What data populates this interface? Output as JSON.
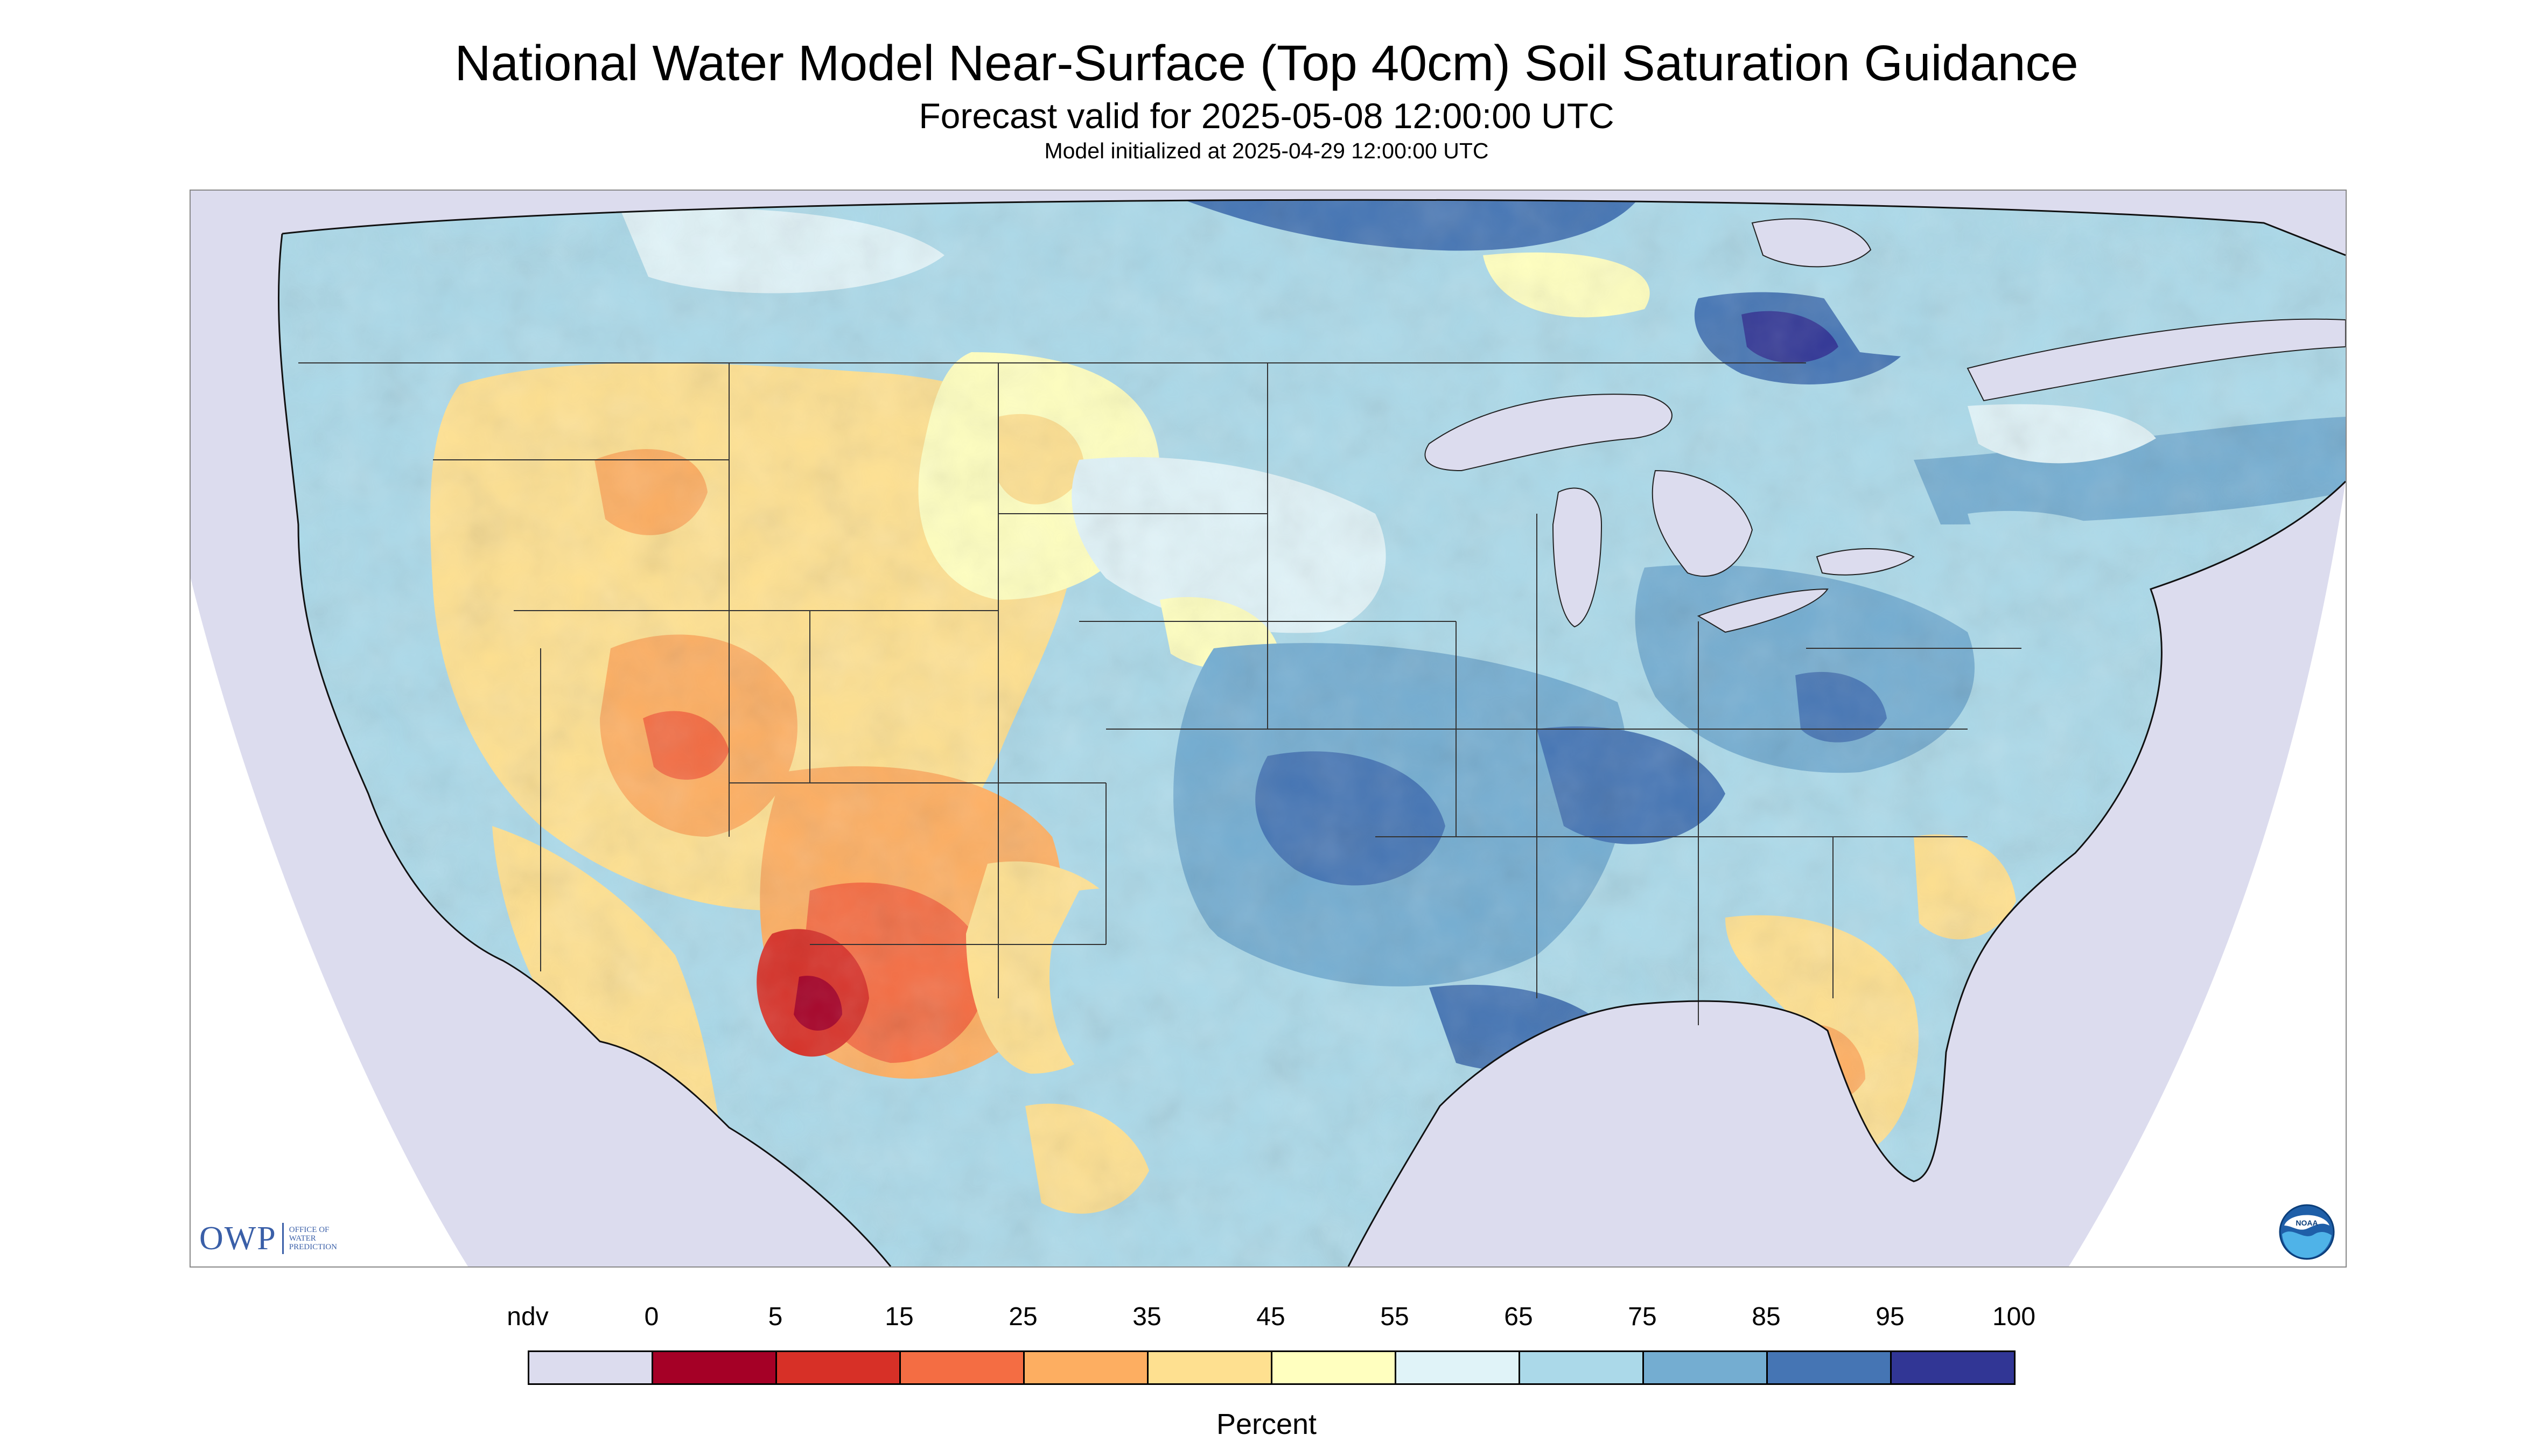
{
  "title": "National Water Model Near-Surface (Top 40cm) Soil Saturation Guidance",
  "subtitle": "Forecast valid for 2025-05-08 12:00:00 UTC",
  "init_line": "Model initialized at 2025-04-29 12:00:00 UTC",
  "map": {
    "region": "Contiguous United States",
    "background_color": "#dcdcee",
    "ocean_color": "#dcdcee"
  },
  "logos": {
    "owp": {
      "letters": "OWP",
      "text_lines": [
        "OFFICE OF",
        "WATER",
        "PREDICTION"
      ]
    },
    "noaa": {
      "letters": "NOAA"
    }
  },
  "legend": {
    "unit": "Percent",
    "labels": [
      "ndv",
      "0",
      "5",
      "15",
      "25",
      "35",
      "45",
      "55",
      "65",
      "75",
      "85",
      "95",
      "100"
    ],
    "colors": [
      "#dcdcee",
      "#a50026",
      "#d73027",
      "#f46d43",
      "#fdae61",
      "#fee090",
      "#ffffbf",
      "#e0f3f8",
      "#abd9e9",
      "#74add1",
      "#4575b4",
      "#313695"
    ]
  }
}
